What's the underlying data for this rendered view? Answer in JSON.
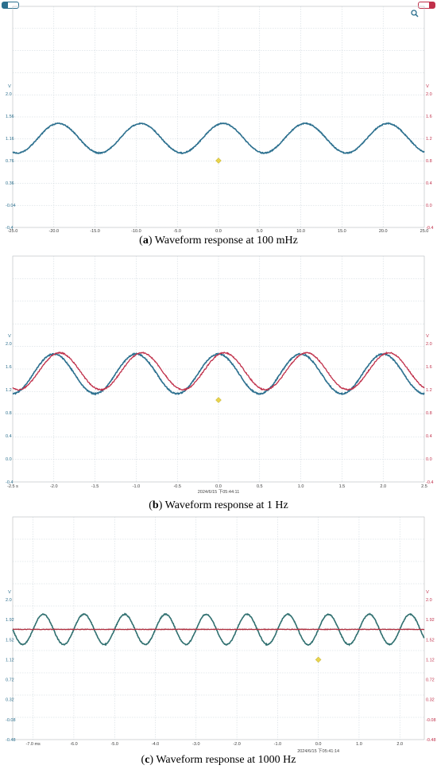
{
  "chart_data": [
    {
      "type": "line",
      "caption_label": "a",
      "caption_text": "Waveform response at 100 mHz",
      "timestamp": "",
      "x_ticks": [
        "-25.0",
        "-20.0",
        "-15.0",
        "-10.0",
        "-5.0",
        "0.0",
        "5.0",
        "10.0",
        "15.0",
        "20.0",
        "25.0"
      ],
      "xlim": [
        -25,
        25
      ],
      "y_left_unit": "V",
      "y_left_ticks": [
        "2.0",
        "1.56",
        "1.16",
        "0.76",
        "0.36",
        "-0.04",
        "-0.4"
      ],
      "y_right_unit": "V",
      "y_right_ticks": [
        "2.0",
        "1.6",
        "1.2",
        "0.8",
        "0.4",
        "0.0",
        "-0.4"
      ],
      "ylim": [
        -0.4,
        2.4
      ],
      "grid": true,
      "series": [
        {
          "color": "#2b6f8e",
          "waveform": "sine",
          "frequency_hz": 0.1,
          "min": 1.16,
          "max": 1.78,
          "phase_deg": 70
        }
      ],
      "trigger_marker": {
        "x": 0.0,
        "y": 1.0,
        "color": "#e8d44d"
      },
      "corner_icons": [
        "teal-pill-icon",
        "red-pill-icon",
        "zoom-icon"
      ]
    },
    {
      "type": "line",
      "caption_label": "b",
      "caption_text": "Waveform response at 1 Hz",
      "timestamp": "2024/6/15 下05:44:11",
      "x_ticks": [
        "-2.5 s",
        "-2.0",
        "-1.5",
        "-1.0",
        "-0.5",
        "0.0",
        "0.5",
        "1.0",
        "1.5",
        "2.0",
        "2.5"
      ],
      "xlim": [
        -2.5,
        2.5
      ],
      "y_left_unit": "V",
      "y_left_ticks": [
        "2.0",
        "1.6",
        "1.2",
        "0.8",
        "0.4",
        "0.0",
        "-0.4"
      ],
      "y_right_unit": "V",
      "y_right_ticks": [
        "2.0",
        "1.6",
        "1.2",
        "0.8",
        "0.4",
        "0.0",
        "-0.4"
      ],
      "ylim": [
        -0.4,
        2.0
      ],
      "grid": true,
      "series": [
        {
          "color": "#2b6f8e",
          "waveform": "sine",
          "frequency_hz": 1.0,
          "min": 1.13,
          "max": 1.82,
          "phase_deg": 90
        },
        {
          "color": "#c0304a",
          "waveform": "sine",
          "frequency_hz": 1.0,
          "min": 1.2,
          "max": 1.84,
          "phase_deg": 65
        }
      ],
      "trigger_marker": {
        "x": 0.0,
        "y": 1.02,
        "color": "#e8d44d"
      }
    },
    {
      "type": "line",
      "caption_label": "c",
      "caption_text": "Waveform response at 1000 Hz",
      "timestamp": "2024/6/15 下05:41:14",
      "x_ticks": [
        "-7.0 ms",
        "-6.0",
        "-5.0",
        "-4.0",
        "-3.0",
        "-2.0",
        "-1.0",
        "0.0",
        "1.0",
        "2.0"
      ],
      "xlim": [
        -7.5,
        2.6
      ],
      "y_left_unit": "V",
      "y_left_ticks": [
        "2.0",
        "1.92",
        "1.52",
        "1.12",
        "0.72",
        "0.32",
        "-0.08",
        "-0.48"
      ],
      "y_right_unit": "V",
      "y_right_ticks": [
        "2.0",
        "1.92",
        "1.52",
        "1.12",
        "0.72",
        "0.32",
        "-0.08",
        "-0.48"
      ],
      "ylim": [
        -0.48,
        2.2
      ],
      "grid": true,
      "series": [
        {
          "color": "#2f6f6f",
          "waveform": "sine",
          "frequency_hz": 1000,
          "min": 1.34,
          "max": 1.92,
          "phase_deg": 0
        },
        {
          "color": "#b03040",
          "waveform": "flat",
          "value": 1.63
        }
      ],
      "trigger_marker": {
        "x": 0.0,
        "y": 1.05,
        "color": "#e8d44d"
      }
    }
  ]
}
